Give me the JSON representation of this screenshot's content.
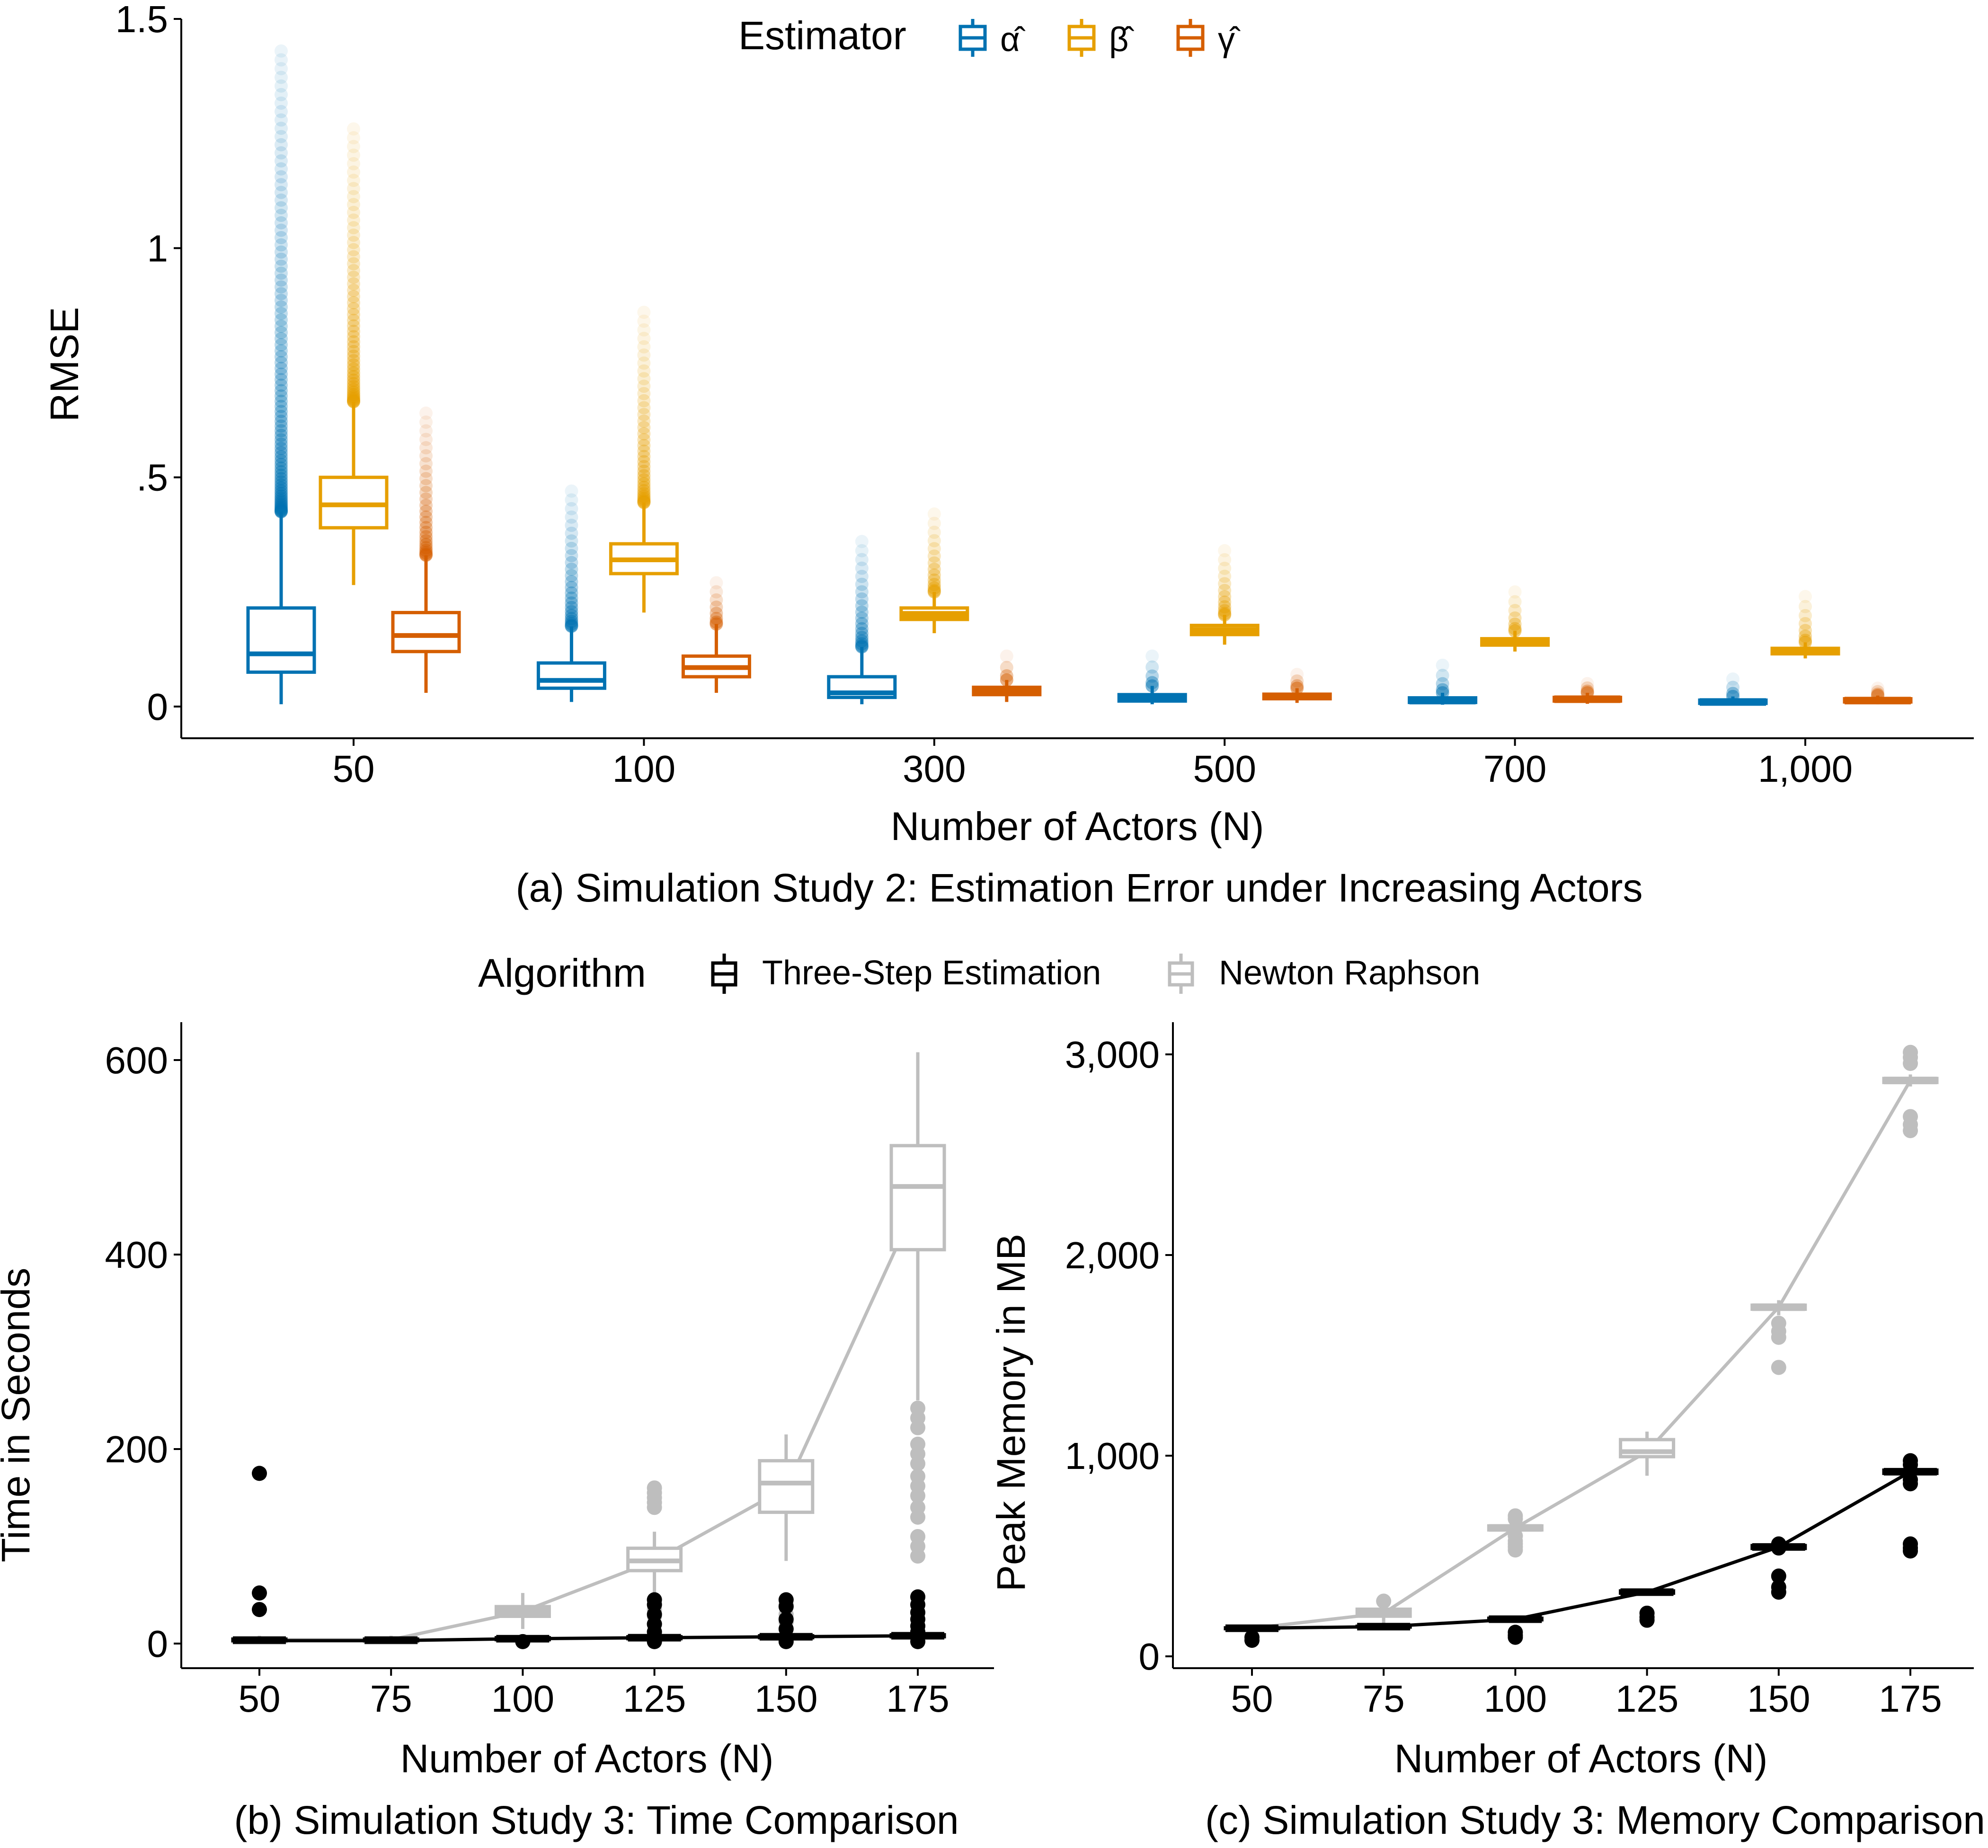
{
  "colors": {
    "alpha": "#0072B2",
    "beta": "#E69F00",
    "gamma": "#D55E00",
    "three_step": "#000000",
    "newton": "#BEBEBE"
  },
  "chart_data": [
    {
      "id": "a",
      "type": "boxplot",
      "caption": "(a) Simulation Study 2: Estimation Error under Increasing Actors",
      "xlabel": "Number of Actors (N)",
      "ylabel": "RMSE",
      "ylim": [
        0,
        1.5
      ],
      "yticks": [
        0,
        0.5,
        1,
        1.5
      ],
      "ytick_labels": [
        "0",
        ".5",
        "1",
        "1.5"
      ],
      "categories": [
        "50",
        "100",
        "300",
        "500",
        "700",
        "1,000"
      ],
      "legend": {
        "title": "Estimator",
        "position": "top",
        "entries": [
          "α̂",
          "β̂",
          "γ̂"
        ]
      },
      "series": [
        {
          "name": "alpha",
          "label": "α̂",
          "color_key": "alpha",
          "boxes": [
            {
              "min": 0.005,
              "q1": 0.075,
              "median": 0.115,
              "q3": 0.215,
              "max": 0.425,
              "outliers_to": 1.43
            },
            {
              "min": 0.01,
              "q1": 0.04,
              "median": 0.057,
              "q3": 0.095,
              "max": 0.175,
              "outliers_to": 0.47
            },
            {
              "min": 0.005,
              "q1": 0.02,
              "median": 0.03,
              "q3": 0.065,
              "max": 0.13,
              "outliers_to": 0.36
            },
            {
              "min": 0.005,
              "q1": 0.012,
              "median": 0.018,
              "q3": 0.026,
              "max": 0.045,
              "outliers_to": 0.11
            },
            {
              "min": 0.004,
              "q1": 0.009,
              "median": 0.013,
              "q3": 0.019,
              "max": 0.03,
              "outliers_to": 0.09
            },
            {
              "min": 0.003,
              "q1": 0.007,
              "median": 0.01,
              "q3": 0.014,
              "max": 0.022,
              "outliers_to": 0.06
            }
          ]
        },
        {
          "name": "beta",
          "label": "β̂",
          "color_key": "beta",
          "boxes": [
            {
              "min": 0.265,
              "q1": 0.39,
              "median": 0.44,
              "q3": 0.5,
              "max": 0.665,
              "outliers_to": 1.26
            },
            {
              "min": 0.205,
              "q1": 0.29,
              "median": 0.32,
              "q3": 0.355,
              "max": 0.445,
              "outliers_to": 0.86
            },
            {
              "min": 0.16,
              "q1": 0.19,
              "median": 0.2,
              "q3": 0.215,
              "max": 0.25,
              "outliers_to": 0.42
            },
            {
              "min": 0.135,
              "q1": 0.157,
              "median": 0.165,
              "q3": 0.177,
              "max": 0.2,
              "outliers_to": 0.34
            },
            {
              "min": 0.12,
              "q1": 0.134,
              "median": 0.14,
              "q3": 0.148,
              "max": 0.165,
              "outliers_to": 0.25
            },
            {
              "min": 0.105,
              "q1": 0.115,
              "median": 0.12,
              "q3": 0.127,
              "max": 0.14,
              "outliers_to": 0.24
            }
          ]
        },
        {
          "name": "gamma",
          "label": "γ̂",
          "color_key": "gamma",
          "boxes": [
            {
              "min": 0.03,
              "q1": 0.12,
              "median": 0.155,
              "q3": 0.205,
              "max": 0.33,
              "outliers_to": 0.64
            },
            {
              "min": 0.03,
              "q1": 0.065,
              "median": 0.085,
              "q3": 0.11,
              "max": 0.18,
              "outliers_to": 0.27
            },
            {
              "min": 0.01,
              "q1": 0.026,
              "median": 0.033,
              "q3": 0.042,
              "max": 0.058,
              "outliers_to": 0.11
            },
            {
              "min": 0.008,
              "q1": 0.017,
              "median": 0.022,
              "q3": 0.027,
              "max": 0.04,
              "outliers_to": 0.07
            },
            {
              "min": 0.006,
              "q1": 0.012,
              "median": 0.016,
              "q3": 0.02,
              "max": 0.03,
              "outliers_to": 0.05
            },
            {
              "min": 0.005,
              "q1": 0.01,
              "median": 0.013,
              "q3": 0.017,
              "max": 0.024,
              "outliers_to": 0.04
            }
          ]
        }
      ]
    },
    {
      "id": "b",
      "type": "boxplot",
      "caption": "(b) Simulation Study 3: Time Comparison",
      "xlabel": "Number of Actors (N)",
      "ylabel": "Time in Seconds",
      "ylim": [
        -15,
        640
      ],
      "yticks": [
        0,
        200,
        400,
        600
      ],
      "ytick_labels": [
        "0",
        "200",
        "400",
        "600"
      ],
      "categories": [
        "50",
        "75",
        "100",
        "125",
        "150",
        "175"
      ],
      "legend": {
        "title": "Algorithm",
        "position": "top",
        "entries": [
          "Three-Step Estimation",
          "Newton Raphson"
        ]
      },
      "series": [
        {
          "name": "Three-Step Estimation",
          "color_key": "three_step",
          "line": [
            3,
            3,
            5,
            6,
            7,
            8
          ],
          "boxes": [
            {
              "min": 2,
              "q1": 3,
              "median": 3.5,
              "q3": 4.5,
              "max": 6,
              "outliers": [
                175,
                52,
                35
              ]
            },
            {
              "min": 2,
              "q1": 3,
              "median": 3.5,
              "q3": 4.5,
              "max": 6,
              "outliers": []
            },
            {
              "min": 3,
              "q1": 4,
              "median": 5,
              "q3": 6,
              "max": 8,
              "outliers": [
                2
              ]
            },
            {
              "min": 4,
              "q1": 5,
              "median": 6,
              "q3": 7,
              "max": 10,
              "outliers": [
                45,
                40,
                30,
                20,
                12,
                2
              ]
            },
            {
              "min": 4,
              "q1": 6,
              "median": 7,
              "q3": 8,
              "max": 11,
              "outliers": [
                45,
                38,
                25,
                15,
                2
              ]
            },
            {
              "min": 5,
              "q1": 7,
              "median": 8,
              "q3": 9,
              "max": 13,
              "outliers": [
                48,
                40,
                32,
                25,
                18,
                12,
                2
              ]
            }
          ]
        },
        {
          "name": "Newton Raphson",
          "color_key": "newton",
          "line": [
            4,
            4,
            33,
            85,
            160,
            455
          ],
          "boxes": [
            {
              "min": 1,
              "q1": 2,
              "median": 3,
              "q3": 5,
              "max": 8,
              "outliers": []
            },
            {
              "min": 1,
              "q1": 2,
              "median": 3,
              "q3": 5,
              "max": 8,
              "outliers": []
            },
            {
              "min": 15,
              "q1": 28,
              "median": 33,
              "q3": 38,
              "max": 52,
              "outliers": []
            },
            {
              "min": 45,
              "q1": 75,
              "median": 85,
              "q3": 98,
              "max": 115,
              "outliers": [
                160,
                155,
                150,
                145,
                140,
                45,
                35,
                28,
                20,
                12
              ]
            },
            {
              "min": 85,
              "q1": 135,
              "median": 165,
              "q3": 188,
              "max": 215,
              "outliers": [
                40,
                30,
                22
              ]
            },
            {
              "min": 250,
              "q1": 405,
              "median": 470,
              "q3": 512,
              "max": 608,
              "outliers": [
                242,
                232,
                222,
                205,
                195,
                185,
                172,
                162,
                152,
                140,
                130,
                110,
                100,
                90
              ]
            }
          ]
        }
      ]
    },
    {
      "id": "c",
      "type": "boxplot",
      "caption": "(c) Simulation Study 3: Memory Comparison",
      "xlabel": "Number of Actors (N)",
      "ylabel": "Peak Memory in MB",
      "ylim": [
        -25,
        3120
      ],
      "yticks": [
        0,
        1000,
        2000,
        3000
      ],
      "ytick_labels": [
        "0",
        "1,000",
        "2,000",
        "3,000"
      ],
      "categories": [
        "50",
        "75",
        "100",
        "125",
        "150",
        "175"
      ],
      "series": [
        {
          "name": "Three-Step Estimation",
          "color_key": "three_step",
          "line": [
            140,
            148,
            185,
            320,
            545,
            920
          ],
          "boxes": [
            {
              "min": 135,
              "q1": 138,
              "median": 140,
              "q3": 142,
              "max": 146,
              "outliers": [
                95,
                80
              ]
            },
            {
              "min": 142,
              "q1": 146,
              "median": 148,
              "q3": 150,
              "max": 155,
              "outliers": []
            },
            {
              "min": 175,
              "q1": 182,
              "median": 185,
              "q3": 190,
              "max": 198,
              "outliers": [
                120,
                105,
                95
              ]
            },
            {
              "min": 305,
              "q1": 315,
              "median": 320,
              "q3": 326,
              "max": 335,
              "outliers": [
                215,
                195,
                180
              ]
            },
            {
              "min": 520,
              "q1": 538,
              "median": 545,
              "q3": 552,
              "max": 565,
              "outliers": [
                560,
                540,
                400,
                345,
                320
              ]
            },
            {
              "min": 895,
              "q1": 912,
              "median": 920,
              "q3": 928,
              "max": 945,
              "outliers": [
                975,
                955,
                880,
                860,
                560,
                540,
                525
              ]
            }
          ]
        },
        {
          "name": "Newton Raphson",
          "color_key": "newton",
          "line": [
            140,
            215,
            640,
            1020,
            1740,
            2870
          ],
          "boxes": [
            {
              "min": 130,
              "q1": 137,
              "median": 140,
              "q3": 143,
              "max": 150,
              "outliers": []
            },
            {
              "min": 165,
              "q1": 200,
              "median": 215,
              "q3": 235,
              "max": 265,
              "outliers": [
                275
              ]
            },
            {
              "min": 600,
              "q1": 630,
              "median": 640,
              "q3": 650,
              "max": 670,
              "outliers": [
                700,
                685,
                600,
                575,
                560,
                545,
                530
              ]
            },
            {
              "min": 900,
              "q1": 995,
              "median": 1020,
              "q3": 1080,
              "max": 1120,
              "outliers": []
            },
            {
              "min": 1700,
              "q1": 1730,
              "median": 1740,
              "q3": 1750,
              "max": 1775,
              "outliers": [
                1660,
                1620,
                1590,
                1440
              ]
            },
            {
              "min": 2840,
              "q1": 2860,
              "median": 2870,
              "q3": 2880,
              "max": 2900,
              "outliers": [
                3010,
                2985,
                2955,
                2690,
                2650,
                2620
              ]
            }
          ]
        }
      ]
    }
  ]
}
